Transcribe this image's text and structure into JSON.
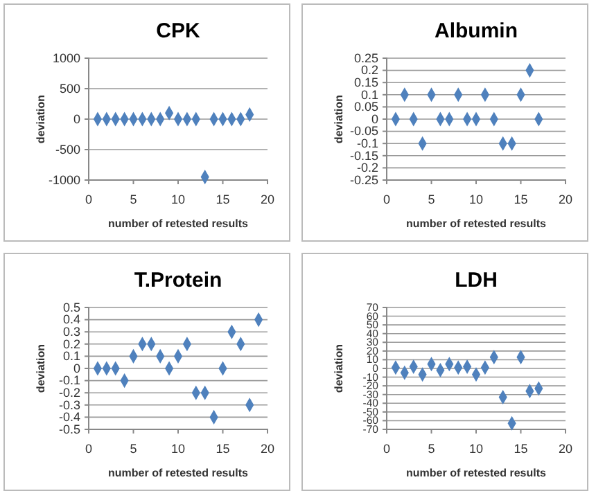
{
  "chart_data": [
    {
      "type": "scatter",
      "title": "CPK",
      "xlabel": "number of retested results",
      "ylabel": "deviation",
      "xlim": [
        0,
        20
      ],
      "xticks": [
        0,
        5,
        10,
        15,
        20
      ],
      "ylim": [
        -1000,
        1000
      ],
      "yticks": [
        -1000,
        -500,
        0,
        500,
        1000
      ],
      "grid": "y",
      "marker": "diamond",
      "series": [
        {
          "color": "#4f81bd",
          "x": [
            1,
            2,
            3,
            4,
            5,
            6,
            7,
            8,
            9,
            10,
            11,
            12,
            13,
            14,
            15,
            16,
            17,
            18
          ],
          "values": [
            0,
            0,
            0,
            0,
            0,
            0,
            0,
            0,
            100,
            0,
            0,
            0,
            -950,
            0,
            0,
            0,
            0,
            75
          ]
        }
      ]
    },
    {
      "type": "scatter",
      "title": "Albumin",
      "xlabel": "number of retested results",
      "ylabel": "deviation",
      "xlim": [
        0,
        20
      ],
      "xticks": [
        0,
        5,
        10,
        15,
        20
      ],
      "ylim": [
        -0.25,
        0.25
      ],
      "yticks": [
        -0.25,
        -0.2,
        -0.15,
        -0.1,
        -0.05,
        0,
        0.05,
        0.1,
        0.15,
        0.2,
        0.25
      ],
      "grid": "y",
      "marker": "diamond",
      "series": [
        {
          "color": "#4f81bd",
          "x": [
            1,
            2,
            3,
            4,
            5,
            6,
            7,
            8,
            9,
            10,
            11,
            12,
            13,
            14,
            15,
            16,
            17
          ],
          "values": [
            0,
            0.1,
            0,
            -0.1,
            0.1,
            0,
            0,
            0.1,
            0,
            0,
            0.1,
            0,
            -0.1,
            -0.1,
            0.1,
            0.2,
            0
          ]
        }
      ]
    },
    {
      "type": "scatter",
      "title": "T.Protein",
      "xlabel": "number of retested results",
      "ylabel": "deviation",
      "xlim": [
        0,
        20
      ],
      "xticks": [
        0,
        5,
        10,
        15,
        20
      ],
      "ylim": [
        -0.5,
        0.5
      ],
      "yticks": [
        -0.5,
        -0.4,
        -0.3,
        -0.2,
        -0.1,
        0,
        0.1,
        0.2,
        0.3,
        0.4,
        0.5
      ],
      "grid": "y",
      "marker": "diamond",
      "series": [
        {
          "color": "#4f81bd",
          "x": [
            1,
            2,
            3,
            4,
            5,
            6,
            7,
            8,
            9,
            10,
            11,
            12,
            13,
            14,
            15,
            16,
            17,
            18,
            19
          ],
          "values": [
            0,
            0,
            0,
            -0.1,
            0.1,
            0.2,
            0.2,
            0.1,
            0,
            0.1,
            0.2,
            -0.2,
            -0.2,
            -0.4,
            0,
            0.3,
            0.2,
            -0.3,
            0.4
          ]
        }
      ]
    },
    {
      "type": "scatter",
      "title": "LDH",
      "xlabel": "number of retested results",
      "ylabel": "deviation",
      "xlim": [
        0,
        20
      ],
      "xticks": [
        0,
        5,
        10,
        15,
        20
      ],
      "ylim": [
        -70,
        70
      ],
      "yticks": [
        -70,
        -60,
        -50,
        -40,
        -30,
        -20,
        -10,
        0,
        10,
        20,
        30,
        40,
        50,
        60,
        70
      ],
      "grid": "y",
      "marker": "diamond",
      "series": [
        {
          "color": "#4f81bd",
          "x": [
            1,
            2,
            3,
            4,
            5,
            6,
            7,
            8,
            9,
            10,
            11,
            12,
            13,
            14,
            15,
            16,
            17
          ],
          "values": [
            1,
            -5,
            2,
            -7,
            5,
            -2,
            5,
            1,
            2,
            -7,
            1,
            13,
            -33,
            -63,
            13,
            -26,
            -23
          ]
        }
      ]
    }
  ]
}
